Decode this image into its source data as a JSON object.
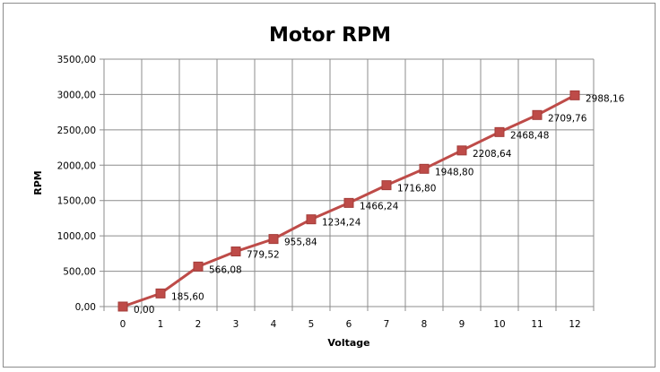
{
  "chart_data": {
    "type": "line",
    "title": "Motor RPM",
    "xlabel": "Voltage",
    "ylabel": "RPM",
    "x": [
      0,
      1,
      2,
      3,
      4,
      5,
      6,
      7,
      8,
      9,
      10,
      11,
      12
    ],
    "xticks": [
      "0",
      "1",
      "2",
      "3",
      "4",
      "5",
      "6",
      "7",
      "8",
      "9",
      "10",
      "11",
      "12"
    ],
    "yticks": [
      "0,00",
      "500,00",
      "1000,00",
      "1500,00",
      "2000,00",
      "2500,00",
      "3000,00",
      "3500,00"
    ],
    "ylim": [
      0,
      3500
    ],
    "grid": true,
    "legend": "none",
    "series": [
      {
        "values": [
          0,
          185.6,
          566.08,
          779.52,
          955.84,
          1234.24,
          1466.24,
          1716.8,
          1948.8,
          2208.64,
          2468.48,
          2709.76,
          2988.16
        ],
        "labels": [
          "0,00",
          "185,60",
          "566,08",
          "779,52",
          "955,84",
          "1234,24",
          "1466,24",
          "1716,80",
          "1948,80",
          "2208,64",
          "2468,48",
          "2709,76",
          "2988,16"
        ],
        "color": "#be4b48",
        "marker": "square"
      }
    ]
  }
}
